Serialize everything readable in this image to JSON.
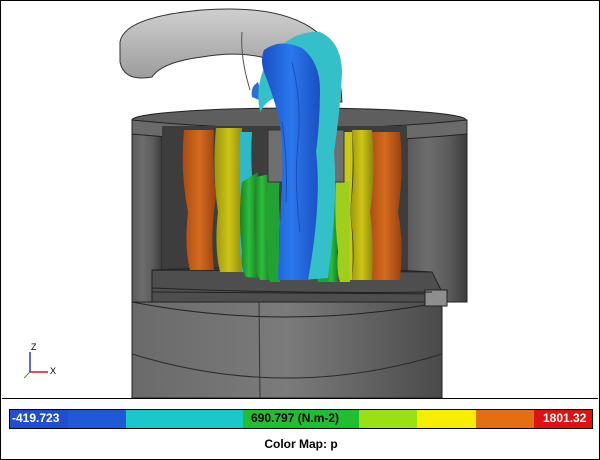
{
  "axes": {
    "z_label": "Z",
    "x_label": "X"
  },
  "legend": {
    "min_label": "-419.723",
    "mid_label": "690.797 (N.m-2)",
    "max_label": "1801.32",
    "title": "Color Map: p",
    "colors": [
      "#1f59d6",
      "#1f59d6",
      "#17c9c9",
      "#17c9c9",
      "#1fbf2f",
      "#1fbf2f",
      "#9be010",
      "#f6ee00",
      "#e36f10",
      "#e01111"
    ]
  },
  "colors": {
    "blue": "#1f6fe6",
    "cyan": "#2cc0c8",
    "green": "#28b23a",
    "lime": "#9fd11a",
    "yellow": "#d9d20f",
    "orange": "#d1681c",
    "gray_dark": "#4a4a4a",
    "gray_mid": "#7a7a7a",
    "gray_light": "#bfbfbf"
  }
}
